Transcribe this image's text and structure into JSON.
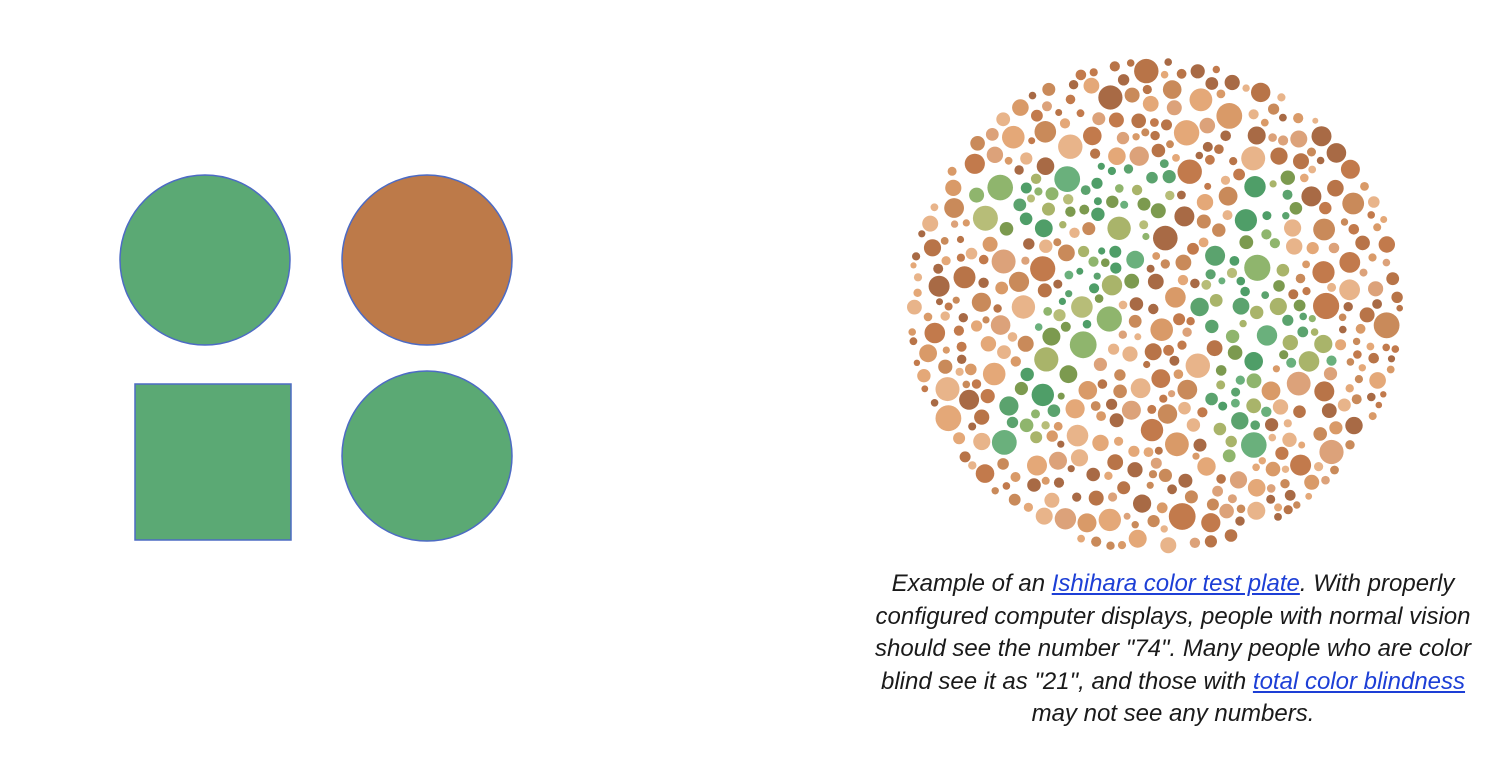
{
  "shapes": {
    "items": [
      {
        "name": "top-left-circle",
        "kind": "circle",
        "fill": "#5ba974"
      },
      {
        "name": "top-right-circle",
        "kind": "circle",
        "fill": "#bd7a49"
      },
      {
        "name": "bottom-left-square",
        "kind": "square",
        "fill": "#5ba974"
      },
      {
        "name": "bottom-right-circle",
        "kind": "circle",
        "fill": "#5ba974"
      }
    ],
    "outline_color": "#4d6bc4"
  },
  "plate": {
    "background_palette": [
      "#c98a5a",
      "#b87448",
      "#d99a68",
      "#e4a878",
      "#c27a4c",
      "#dca27a",
      "#a86a45",
      "#e8b48a"
    ],
    "figure_palette": [
      "#5ba36e",
      "#8fb56d",
      "#a9b46a",
      "#7c9a4f",
      "#6ab07c",
      "#b7bd78",
      "#4f9e68"
    ]
  },
  "caption": {
    "part1": "Example of an ",
    "link1": "Ishihara color test plate",
    "part2": ". With properly configured computer displays, people with normal vision should see the number \"74\". Many people who are color blind see it as \"21\", and those with ",
    "link2": "total color blindness",
    "part3": " may not see any numbers."
  }
}
